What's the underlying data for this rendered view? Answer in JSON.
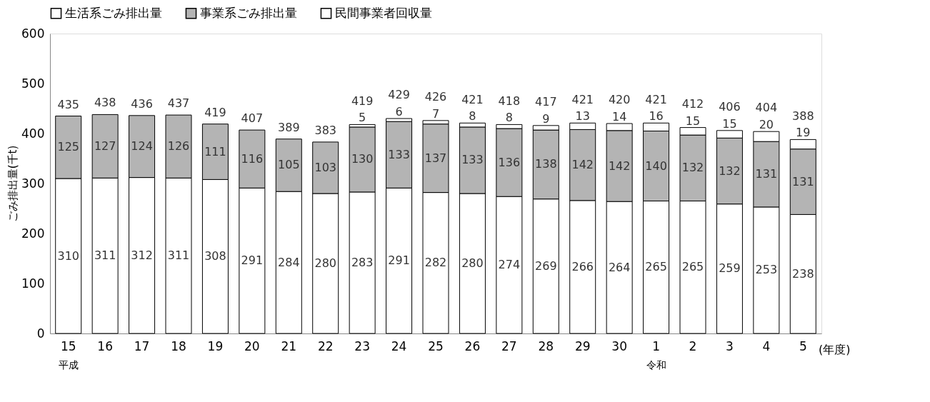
{
  "chart_data": {
    "type": "bar",
    "stacked": true,
    "ylabel": "ごみ排出量(千t)",
    "xlabel": "(年度)",
    "categories": [
      "15",
      "16",
      "17",
      "18",
      "19",
      "20",
      "21",
      "22",
      "23",
      "24",
      "25",
      "26",
      "27",
      "28",
      "29",
      "30",
      "1",
      "2",
      "3",
      "4",
      "5"
    ],
    "series": [
      {
        "name": "生活系ごみ排出量",
        "color": "#ffffff",
        "values": [
          310,
          311,
          312,
          311,
          308,
          291,
          284,
          280,
          283,
          291,
          282,
          280,
          274,
          269,
          266,
          264,
          265,
          265,
          259,
          253,
          238
        ]
      },
      {
        "name": "事業系ごみ排出量",
        "color": "#b4b4b4",
        "values": [
          125,
          127,
          124,
          126,
          111,
          116,
          105,
          103,
          130,
          133,
          137,
          133,
          136,
          138,
          142,
          142,
          140,
          132,
          132,
          131,
          131
        ]
      },
      {
        "name": "民間事業者回収量",
        "color": "#ffffff",
        "values": [
          null,
          null,
          null,
          null,
          null,
          null,
          null,
          null,
          5,
          6,
          7,
          8,
          8,
          9,
          13,
          14,
          16,
          15,
          15,
          20,
          19
        ]
      }
    ],
    "totals": [
      "435",
      "438",
      "436",
      "437",
      "419",
      "407",
      "389",
      "383",
      "419",
      "429",
      "426",
      "421",
      "418",
      "417",
      "421",
      "420",
      "421",
      "412",
      "406",
      "404",
      "388"
    ],
    "data_labels": true,
    "ylim": [
      0,
      600
    ],
    "yticks": [
      0,
      100,
      200,
      300,
      400,
      500,
      600
    ],
    "grid": false,
    "legend": "top",
    "annotations": [
      "平成",
      "令和"
    ]
  }
}
